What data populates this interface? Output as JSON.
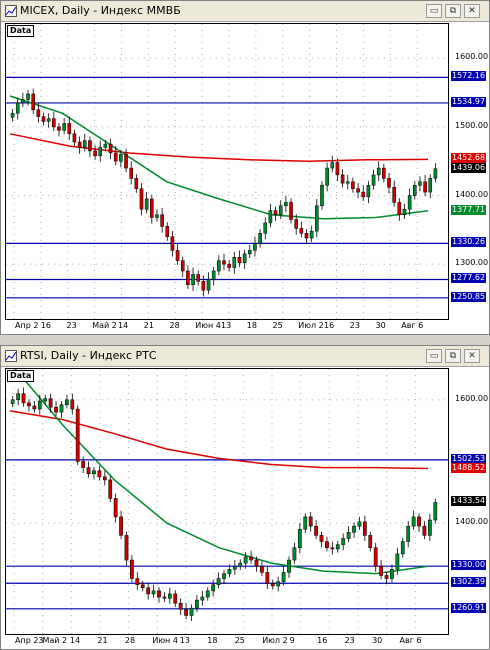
{
  "colors": {
    "hline": "#0000b0",
    "ma_red": "#dd0000",
    "ma_green": "#008a2e",
    "bull": "#008a2e",
    "bear": "#cc0000",
    "grid": "#b0b0b0",
    "last_price_bg": "#000000"
  },
  "windows": [
    {
      "title": "MICEX, Daily - Индекс ММВБ",
      "data_label": "Data",
      "buttons": {
        "min": "▭",
        "restore": "⧉",
        "close": "✕"
      },
      "y_ticks": [
        "1600.00",
        "1500.00",
        "1400.00",
        "1300.00"
      ],
      "x_labels": [
        "Апр 2",
        "16",
        "23",
        "Май 2",
        "14",
        "21",
        "28",
        "Июн 4",
        "13",
        "18",
        "25",
        "Июл 2",
        "16",
        "23",
        "30",
        "Авг 6"
      ],
      "levels": [
        {
          "label": "1572.16",
          "kind": "hline"
        },
        {
          "label": "1534.97",
          "kind": "hline"
        },
        {
          "label": "1452.68",
          "kind": "ma_red"
        },
        {
          "label": "1439.06",
          "kind": "last"
        },
        {
          "label": "1377.71",
          "kind": "ma_green"
        },
        {
          "label": "1330.26",
          "kind": "hline"
        },
        {
          "label": "1277.62",
          "kind": "hline"
        },
        {
          "label": "1250.85",
          "kind": "hline"
        }
      ],
      "chart_data": {
        "type": "candlestick",
        "ylim": [
          1220,
          1650
        ],
        "hlines": [
          1572.16,
          1534.97,
          1330.26,
          1277.62,
          1250.85
        ],
        "closes": [
          1520,
          1535,
          1540,
          1548,
          1525,
          1515,
          1508,
          1512,
          1500,
          1495,
          1505,
          1490,
          1478,
          1470,
          1480,
          1465,
          1458,
          1470,
          1475,
          1462,
          1450,
          1460,
          1440,
          1425,
          1410,
          1380,
          1395,
          1368,
          1372,
          1355,
          1340,
          1320,
          1305,
          1290,
          1270,
          1285,
          1275,
          1262,
          1278,
          1290,
          1305,
          1300,
          1295,
          1310,
          1302,
          1315,
          1320,
          1330,
          1345,
          1360,
          1378,
          1372,
          1385,
          1390,
          1365,
          1352,
          1345,
          1338,
          1348,
          1385,
          1415,
          1440,
          1448,
          1430,
          1418,
          1420,
          1410,
          1405,
          1398,
          1415,
          1430,
          1440,
          1425,
          1412,
          1390,
          1372,
          1380,
          1400,
          1415,
          1420,
          1405,
          1425,
          1439.06
        ],
        "ma_red": [
          1490,
          1472,
          1462,
          1456,
          1452,
          1450,
          1452,
          1452.68
        ],
        "ma_green": [
          1545,
          1520,
          1470,
          1420,
          1395,
          1372,
          1366,
          1368,
          1377.71
        ],
        "last": 1439.06
      }
    },
    {
      "title": "RTSI, Daily - Индекс РТС",
      "data_label": "Data",
      "buttons": {
        "min": "▭",
        "restore": "⧉",
        "close": "✕"
      },
      "y_ticks": [
        "1600.00",
        "1400.00"
      ],
      "x_labels": [
        "Апр 23",
        "Май 2",
        "14",
        "21",
        "28",
        "Июн 4",
        "13",
        "18",
        "25",
        "Июл 2",
        "9",
        "16",
        "23",
        "30",
        "Авг 6"
      ],
      "levels": [
        {
          "label": "1502.53",
          "kind": "hline"
        },
        {
          "label": "1488.52",
          "kind": "ma_red"
        },
        {
          "label": "1433.54",
          "kind": "last"
        },
        {
          "label": "1330.00",
          "kind": "hline"
        },
        {
          "label": "1302.39",
          "kind": "hline"
        },
        {
          "label": "1260.91",
          "kind": "hline"
        }
      ],
      "chart_data": {
        "type": "candlestick",
        "ylim": [
          1220,
          1650
        ],
        "hlines": [
          1502.53,
          1330.0,
          1302.39,
          1260.91
        ],
        "closes": [
          1600,
          1610,
          1595,
          1590,
          1585,
          1598,
          1602,
          1588,
          1580,
          1592,
          1600,
          1585,
          1500,
          1490,
          1480,
          1485,
          1475,
          1470,
          1440,
          1410,
          1380,
          1340,
          1310,
          1300,
          1295,
          1285,
          1290,
          1280,
          1278,
          1285,
          1270,
          1260,
          1250,
          1262,
          1275,
          1280,
          1290,
          1300,
          1310,
          1318,
          1325,
          1330,
          1335,
          1345,
          1340,
          1330,
          1320,
          1302,
          1298,
          1305,
          1320,
          1340,
          1360,
          1390,
          1410,
          1395,
          1380,
          1370,
          1360,
          1358,
          1365,
          1375,
          1385,
          1395,
          1402,
          1380,
          1360,
          1330,
          1315,
          1310,
          1325,
          1350,
          1370,
          1395,
          1410,
          1395,
          1380,
          1405,
          1433.54
        ],
        "ma_red": [
          1582,
          1568,
          1545,
          1520,
          1505,
          1495,
          1490,
          1490,
          1488.52
        ],
        "ma_green": [
          1660,
          1560,
          1470,
          1400,
          1360,
          1335,
          1322,
          1318,
          1330
        ],
        "last": 1433.54
      }
    }
  ]
}
